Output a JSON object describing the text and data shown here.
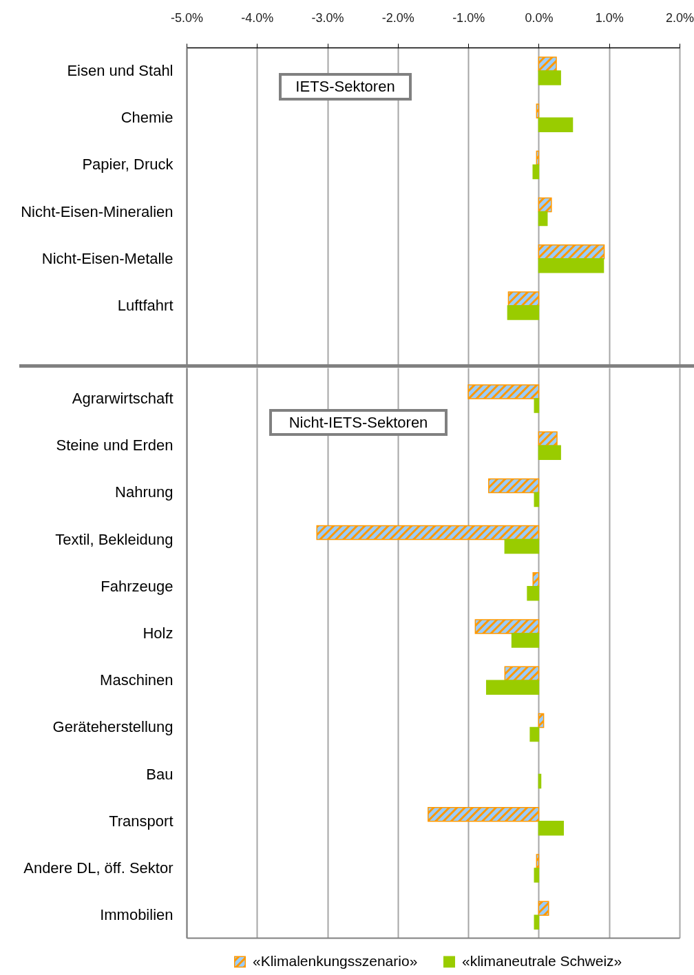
{
  "chart_data": [
    {
      "type": "bar",
      "orientation": "horizontal",
      "categories": [
        "Eisen und Stahl",
        "Chemie",
        "Papier, Druck",
        "Nicht-Eisen-Mineralien",
        "Nicht-Eisen-Metalle",
        "Luftfahrt"
      ],
      "series": [
        {
          "color": "#ff9900",
          "values": [
            0.25,
            -0.03,
            -0.03,
            0.18,
            0.93,
            -0.43
          ]
        },
        {
          "color": "#99cc00",
          "values": [
            0.31,
            0.48,
            -0.08,
            0.12,
            0.92,
            -0.44
          ]
        }
      ],
      "xlim": [
        -5,
        2
      ],
      "xticks": [
        {
          "value": -5,
          "label": "-5.0%"
        },
        {
          "value": -4,
          "label": "-4.0%"
        },
        {
          "value": -3,
          "label": "-3.0%"
        },
        {
          "value": -2,
          "label": "-2.0%"
        },
        {
          "value": -1,
          "label": "-1.0%"
        },
        {
          "value": 0,
          "label": "0.0%"
        },
        {
          "value": 1,
          "label": "1.0%"
        },
        {
          "value": 2,
          "label": "2.0%"
        }
      ],
      "grid": "x",
      "annotations": [
        "IETS-Sektoren"
      ]
    },
    {
      "type": "bar",
      "orientation": "horizontal",
      "categories": [
        "Agrarwirtschaft",
        "Steine und Erden",
        "Nahrung",
        "Textil, Bekleidung",
        "Fahrzeuge",
        "Holz",
        "Maschinen",
        "Geräteherstellung",
        "Bau",
        "Transport",
        "Andere DL, öff. Sektor",
        "Immobilien"
      ],
      "series": [
        {
          "name": "«Klimalenkungsszenario»",
          "color": "#ff9900",
          "values": [
            -1.0,
            0.26,
            -0.71,
            -3.15,
            -0.08,
            -0.9,
            -0.48,
            0.07,
            null,
            -1.57,
            -0.03,
            0.14
          ]
        },
        {
          "name": "«klimaneutrale Schweiz»",
          "color": "#99cc00",
          "values": [
            -0.06,
            0.31,
            -0.06,
            -0.48,
            -0.16,
            -0.38,
            -0.74,
            -0.12,
            0.03,
            0.35,
            -0.06,
            -0.06
          ]
        }
      ],
      "xlim": [
        -5,
        2
      ],
      "xticks": [
        -5,
        -4,
        -3,
        -2,
        -1,
        0,
        1,
        2
      ],
      "grid": "x",
      "tick_labels": "y",
      "legend": "bottom",
      "annotations": [
        "Nicht-IETS-Sektoren"
      ]
    }
  ]
}
